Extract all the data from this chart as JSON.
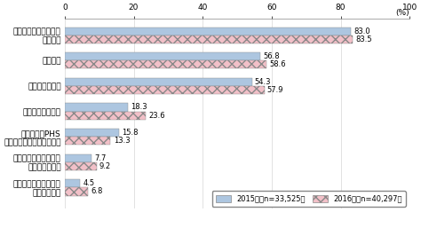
{
  "categories": [
    "インターネット対応型\nテレビ受信機",
    "インターネット対応型\n家庭用ゲーム機",
    "携帯電話・PHS\n（スマートフォンを除く）",
    "タブレット型端末",
    "スマートフォン",
    "パソコン",
    "インターネット利用率\n（全体）"
  ],
  "values_2015": [
    4.5,
    7.7,
    15.8,
    18.3,
    54.3,
    56.8,
    83.0
  ],
  "values_2016": [
    6.8,
    9.2,
    13.3,
    23.6,
    57.9,
    58.6,
    83.5
  ],
  "color_2015": "#adc6e0",
  "color_2016": "#f2c0c8",
  "hatch_2016": "xxx",
  "xlim": [
    0,
    100
  ],
  "xticks": [
    0,
    20,
    40,
    60,
    80,
    100
  ],
  "xlabel_pct": "(%)",
  "legend_2015": "2015年（n=33,525）",
  "legend_2016": "2016年（n=40,297）",
  "bar_height": 0.32,
  "value_fontsize": 6.0,
  "label_fontsize": 6.5,
  "tick_fontsize": 6.5,
  "bg_color": "#ffffff"
}
